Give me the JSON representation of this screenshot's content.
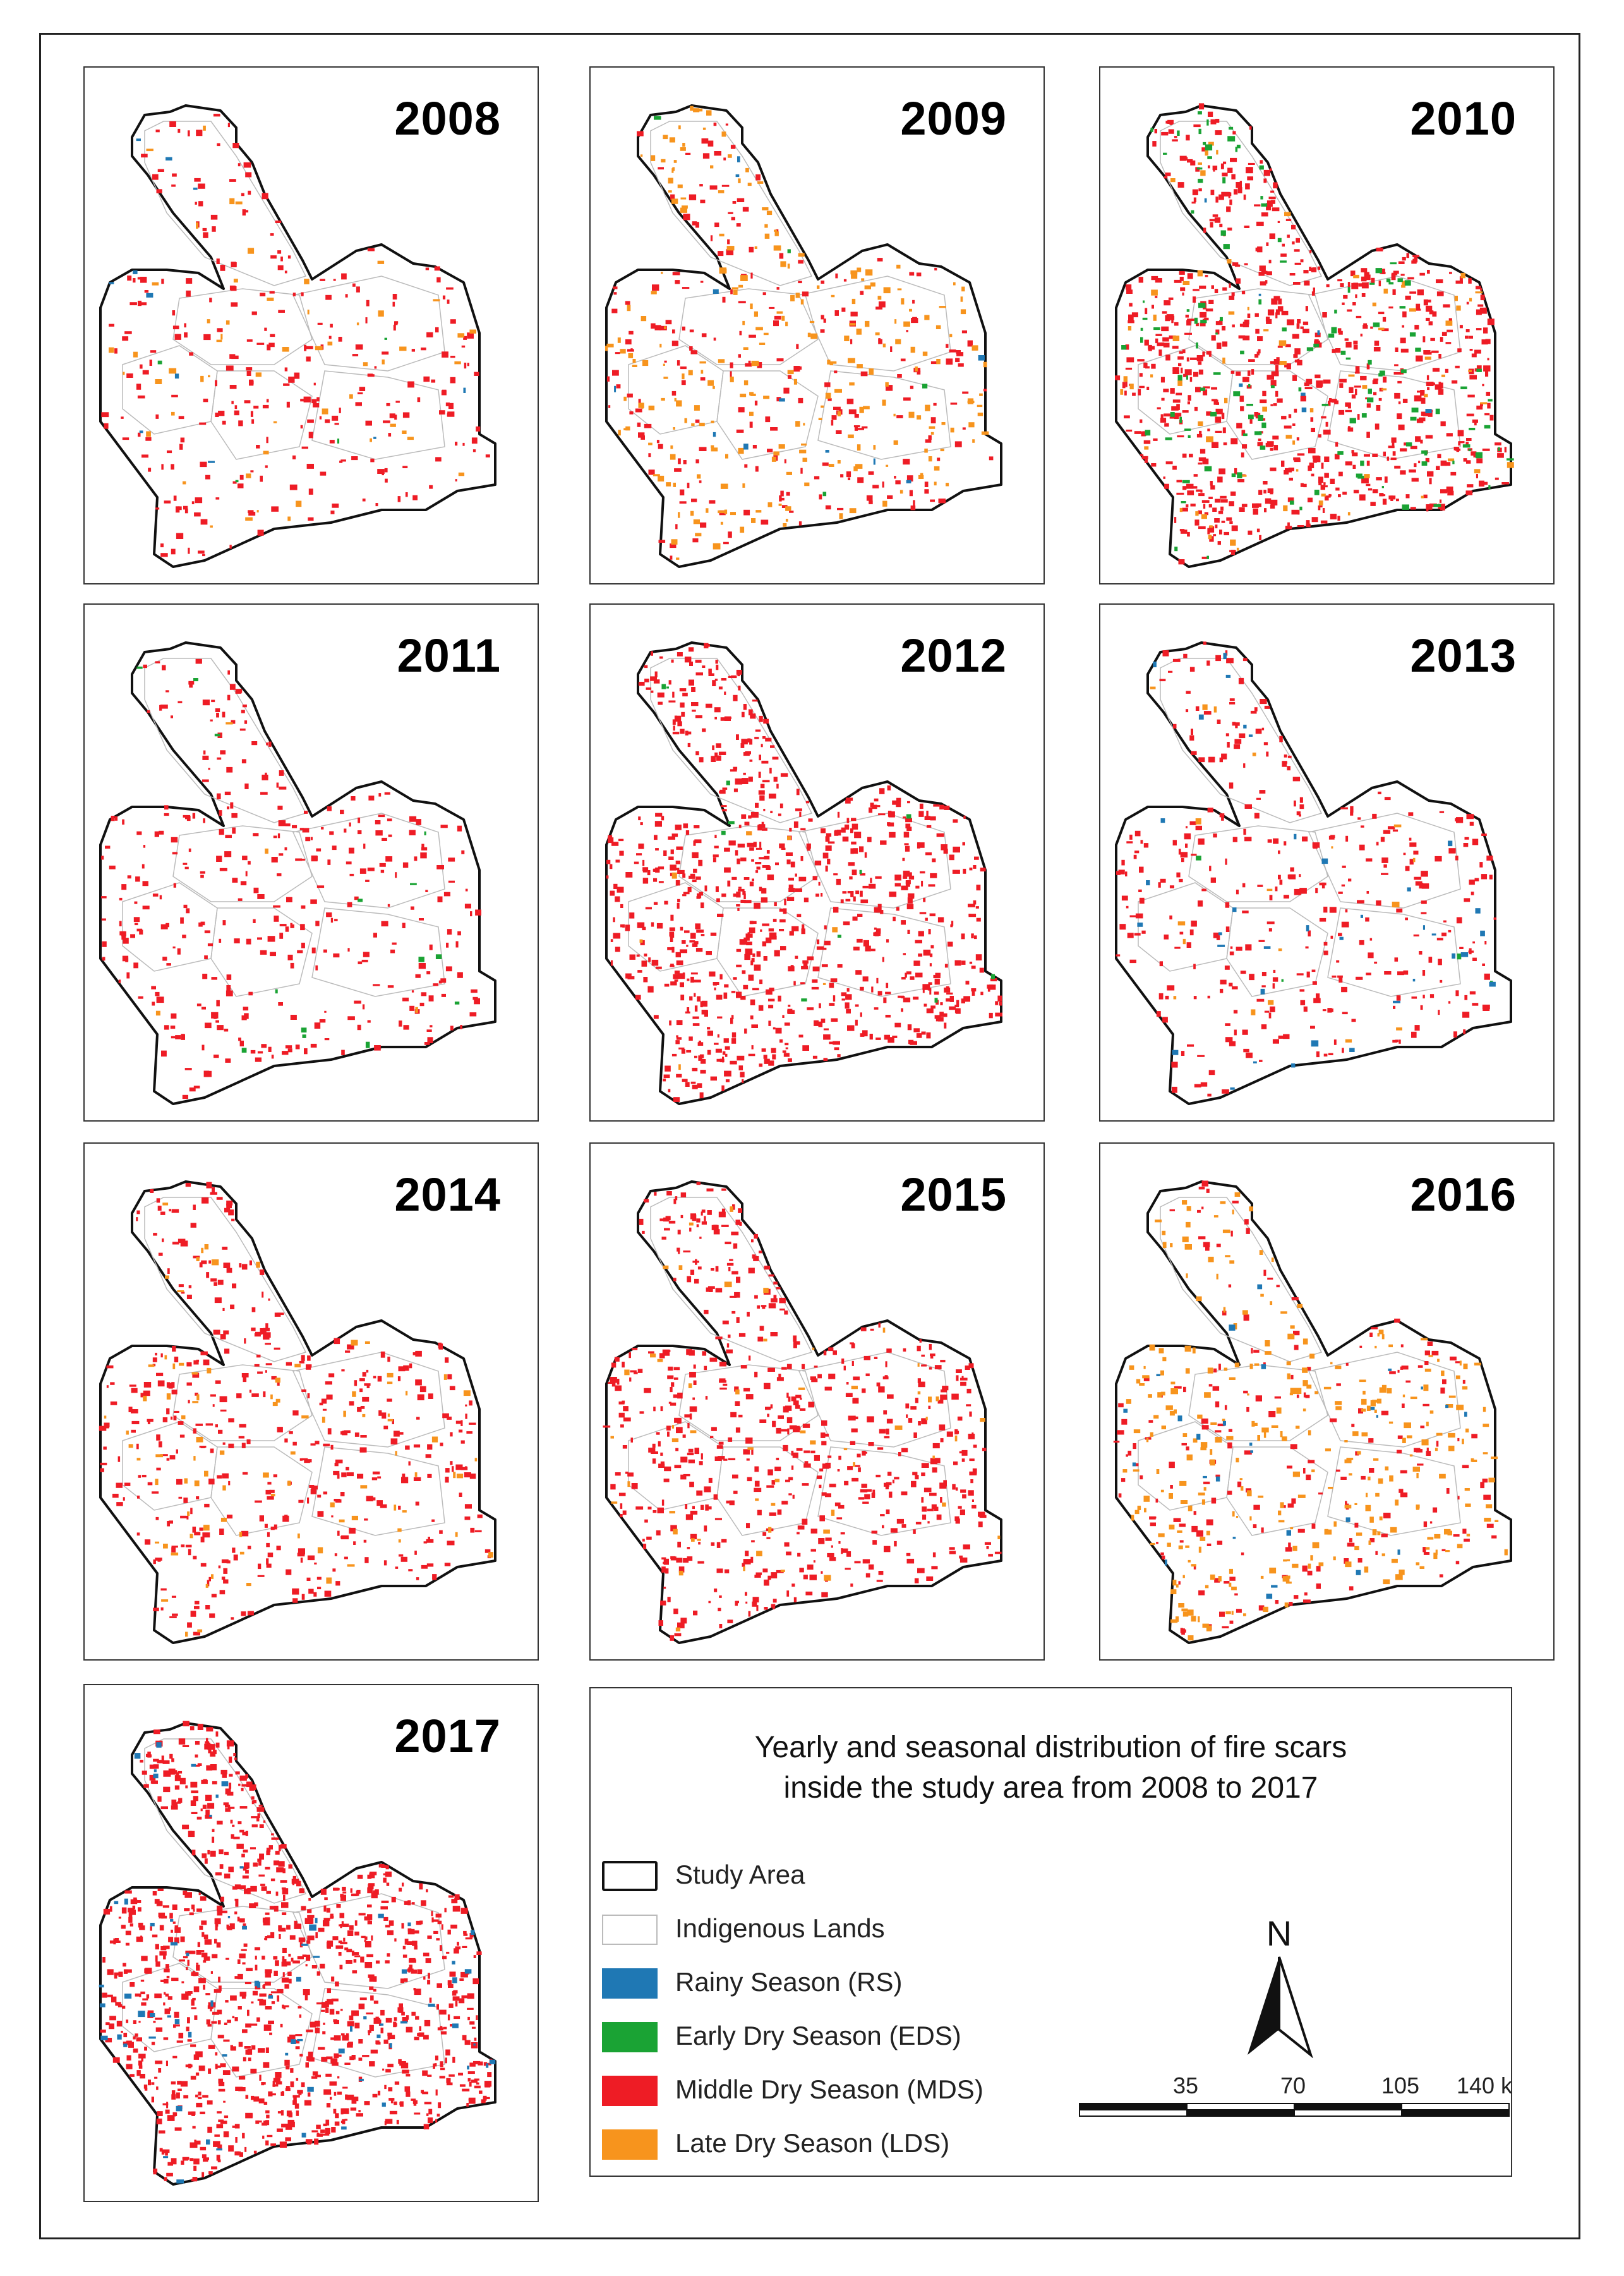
{
  "panels": [
    {
      "year": "2008",
      "fires": {
        "rs": 0.006,
        "eds": 0.002,
        "mds": 0.16,
        "lds": 0.03
      }
    },
    {
      "year": "2009",
      "fires": {
        "rs": 0.006,
        "eds": 0.002,
        "mds": 0.14,
        "lds": 0.14
      }
    },
    {
      "year": "2010",
      "fires": {
        "rs": 0.004,
        "eds": 0.07,
        "mds": 0.45,
        "lds": 0.04
      }
    },
    {
      "year": "2011",
      "fires": {
        "rs": 0.0,
        "eds": 0.008,
        "mds": 0.2,
        "lds": 0.002
      }
    },
    {
      "year": "2012",
      "fires": {
        "rs": 0.0,
        "eds": 0.006,
        "mds": 0.46,
        "lds": 0.004
      }
    },
    {
      "year": "2013",
      "fires": {
        "rs": 0.02,
        "eds": 0.002,
        "mds": 0.2,
        "lds": 0.01
      }
    },
    {
      "year": "2014",
      "fires": {
        "rs": 0.0,
        "eds": 0.0,
        "mds": 0.25,
        "lds": 0.05
      }
    },
    {
      "year": "2015",
      "fires": {
        "rs": 0.0,
        "eds": 0.0,
        "mds": 0.35,
        "lds": 0.03
      }
    },
    {
      "year": "2016",
      "fires": {
        "rs": 0.015,
        "eds": 0.0,
        "mds": 0.12,
        "lds": 0.17
      }
    },
    {
      "year": "2017",
      "fires": {
        "rs": 0.04,
        "eds": 0.0,
        "mds": 0.62,
        "lds": 0.0
      }
    }
  ],
  "legend": {
    "title_line1": "Yearly and seasonal distribution of fire scars",
    "title_line2": "inside the study area from 2008 to 2017",
    "items": [
      {
        "label": "Study Area",
        "fill": "#ffffff",
        "stroke": "#111111"
      },
      {
        "label": "Indigenous Lands",
        "fill": "#ffffff",
        "stroke": "#bbbbbb"
      },
      {
        "label": "Rainy Season (RS)",
        "fill": "#1f78b4",
        "stroke": "#1f78b4"
      },
      {
        "label": "Early Dry Season (EDS)",
        "fill": "#1aa334",
        "stroke": "#1aa334"
      },
      {
        "label": "Middle Dry Season (MDS)",
        "fill": "#ee1c25",
        "stroke": "#ee1c25"
      },
      {
        "label": "Late Dry Season (LDS)",
        "fill": "#f7941d",
        "stroke": "#f7941d"
      }
    ]
  },
  "north_label": "N",
  "scale": {
    "ticks": [
      "35",
      "70",
      "105",
      "140 km"
    ]
  },
  "colors": {
    "rs": "#1f78b4",
    "eds": "#1aa334",
    "mds": "#ee1c25",
    "lds": "#f7941d"
  }
}
